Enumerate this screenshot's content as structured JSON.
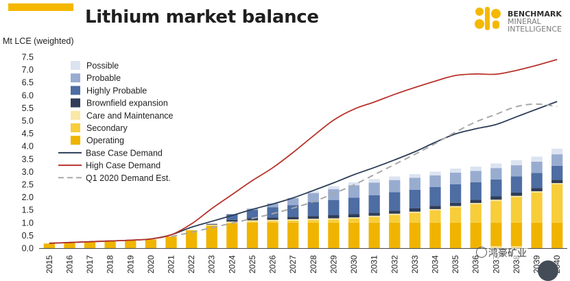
{
  "header": {
    "title": "Lithium market balance",
    "accent_color": "#f5b800"
  },
  "logo": {
    "line1": "BENCHMARK",
    "line2": "MINERAL",
    "line3": "INTELLIGENCE",
    "colors": [
      "#f5b800",
      "#6b6b6b"
    ]
  },
  "watermark": {
    "text": "鸿豪矿业",
    "icon": "wechat-channel-icon"
  },
  "chart_data": {
    "type": "bar",
    "title": "Lithium market balance",
    "ylabel": "Mt LCE (weighted)",
    "xlabel": "",
    "ylim": [
      0,
      7.5
    ],
    "yticks": [
      "0.0",
      "0.5",
      "1.0",
      "1.5",
      "2.0",
      "2.5",
      "3.0",
      "3.5",
      "4.0",
      "4.5",
      "5.0",
      "5.5",
      "6.0",
      "6.5",
      "7.0",
      "7.5"
    ],
    "categories": [
      "2015",
      "2016",
      "2017",
      "2018",
      "2019",
      "2020",
      "2021",
      "2022",
      "2023",
      "2024",
      "2025",
      "2026",
      "2027",
      "2028",
      "2029",
      "2030",
      "2031",
      "2032",
      "2033",
      "2034",
      "2035",
      "2036",
      "2037",
      "2038",
      "2039",
      "2040"
    ],
    "stacked": true,
    "series": [
      {
        "name": "Operating",
        "color": "#f0b400",
        "values": [
          0.18,
          0.21,
          0.24,
          0.26,
          0.3,
          0.34,
          0.45,
          0.7,
          0.88,
          0.97,
          1.0,
          1.0,
          1.0,
          1.0,
          1.0,
          1.0,
          1.0,
          1.0,
          1.0,
          1.0,
          1.0,
          1.0,
          1.0,
          1.0,
          1.0,
          1.0
        ]
      },
      {
        "name": "Secondary",
        "color": "#f7cd3a",
        "values": [
          0,
          0,
          0,
          0,
          0,
          0,
          0,
          0,
          0,
          0.02,
          0.04,
          0.06,
          0.08,
          0.1,
          0.12,
          0.16,
          0.22,
          0.3,
          0.38,
          0.48,
          0.6,
          0.72,
          0.85,
          1.0,
          1.18,
          1.5
        ]
      },
      {
        "name": "Care and Maintenance",
        "color": "#fae8a6",
        "values": [
          0,
          0,
          0,
          0,
          0,
          0,
          0,
          0,
          0.04,
          0.05,
          0.05,
          0.05,
          0.05,
          0.05,
          0.05,
          0.05,
          0.05,
          0.05,
          0.05,
          0.05,
          0.05,
          0.05,
          0.05,
          0.05,
          0.05,
          0.05
        ]
      },
      {
        "name": "Brownfield expansion",
        "color": "#2f3d58",
        "values": [
          0,
          0,
          0,
          0,
          0,
          0,
          0,
          0,
          0.03,
          0.07,
          0.08,
          0.09,
          0.1,
          0.11,
          0.12,
          0.12,
          0.12,
          0.12,
          0.13,
          0.13,
          0.13,
          0.13,
          0.13,
          0.13,
          0.13,
          0.13
        ]
      },
      {
        "name": "Highly Probable",
        "color": "#4d6da3",
        "values": [
          0,
          0,
          0,
          0,
          0,
          0,
          0,
          0,
          0,
          0.22,
          0.33,
          0.4,
          0.45,
          0.55,
          0.6,
          0.65,
          0.68,
          0.72,
          0.73,
          0.74,
          0.72,
          0.68,
          0.66,
          0.63,
          0.59,
          0.55
        ]
      },
      {
        "name": "Probable",
        "color": "#98acd0",
        "values": [
          0,
          0,
          0,
          0,
          0,
          0,
          0,
          0,
          0,
          0,
          0.05,
          0.15,
          0.28,
          0.35,
          0.42,
          0.48,
          0.5,
          0.48,
          0.47,
          0.45,
          0.46,
          0.45,
          0.45,
          0.44,
          0.44,
          0.45
        ]
      },
      {
        "name": "Possible",
        "color": "#dce3f0",
        "values": [
          0,
          0,
          0,
          0,
          0,
          0,
          0,
          0,
          0,
          0,
          0,
          0,
          0.02,
          0.08,
          0.12,
          0.12,
          0.14,
          0.14,
          0.14,
          0.15,
          0.16,
          0.17,
          0.18,
          0.2,
          0.2,
          0.22
        ]
      }
    ],
    "lines": [
      {
        "name": "Base Case Demand",
        "color": "#2b3c55",
        "style": "solid",
        "values": [
          0.19,
          0.22,
          0.25,
          0.28,
          0.31,
          0.36,
          0.52,
          0.82,
          1.05,
          1.28,
          1.52,
          1.73,
          1.97,
          2.26,
          2.56,
          2.88,
          3.16,
          3.46,
          3.78,
          4.15,
          4.48,
          4.68,
          4.85,
          5.15,
          5.45,
          5.75
        ]
      },
      {
        "name": "High Case Demand",
        "color": "#b8322c",
        "style": "solid",
        "values": [
          0.19,
          0.22,
          0.25,
          0.28,
          0.31,
          0.36,
          0.52,
          0.95,
          1.55,
          2.1,
          2.65,
          3.15,
          3.75,
          4.4,
          5.02,
          5.45,
          5.73,
          6.03,
          6.3,
          6.55,
          6.77,
          6.83,
          6.82,
          6.97,
          7.17,
          7.4
        ]
      },
      {
        "name": "Q1 2020 Demand Est.",
        "color": "#a8a8a8",
        "style": "dashed",
        "values": [
          null,
          null,
          null,
          null,
          null,
          null,
          0.45,
          0.62,
          0.8,
          0.98,
          1.16,
          1.35,
          1.57,
          1.82,
          2.14,
          2.48,
          2.88,
          3.28,
          3.68,
          4.1,
          4.55,
          4.95,
          5.25,
          5.55,
          5.65,
          5.55
        ]
      }
    ],
    "legend": {
      "position": "top-left",
      "order": [
        "Possible",
        "Probable",
        "Highly Probable",
        "Brownfield expansion",
        "Care and Maintenance",
        "Secondary",
        "Operating",
        "Base Case Demand",
        "High Case Demand",
        "Q1 2020 Demand Est."
      ]
    }
  }
}
